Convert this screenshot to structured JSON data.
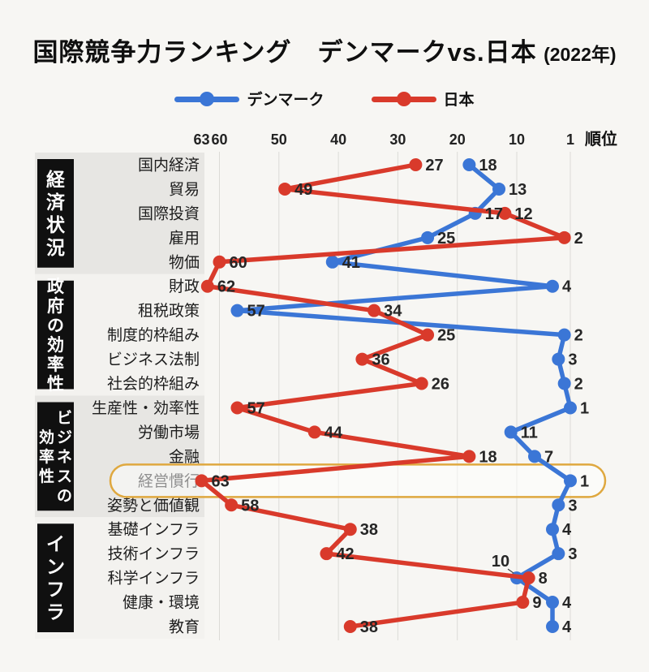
{
  "title": {
    "main": "国際競争力ランキング　デンマークvs.日本",
    "year": "(2022年)"
  },
  "legend": {
    "items": [
      {
        "label": "デンマーク",
        "color": "#3b76d6"
      },
      {
        "label": "日本",
        "color": "#d93a2b"
      }
    ]
  },
  "colors": {
    "background": "#f7f6f3",
    "band_gray": "#e7e6e3",
    "band_light": "#f3f2ef",
    "group_box": "#101010",
    "group_box_text": "#ffffff",
    "grid": "#dcdbd7",
    "text": "#1d1d1d",
    "value_label": "#262626",
    "leader_line": "#4a4a4a"
  },
  "chart_data": {
    "type": "line",
    "orientation": "horizontal",
    "note": "ranking chart, x axis reversed: rank 63 (worst) left, rank 1 (best) right",
    "axis": {
      "unit_label": "順位",
      "ticks": [
        63,
        60,
        50,
        40,
        30,
        20,
        10,
        1
      ],
      "gridline_ranks": [
        60,
        50,
        40,
        30,
        20,
        10,
        1
      ],
      "range": [
        1,
        63
      ]
    },
    "groups": [
      {
        "label": "経済状況",
        "label_columns": [
          "経済状況"
        ],
        "categories": [
          "国内経済",
          "貿易",
          "国際投資",
          "雇用",
          "物価"
        ]
      },
      {
        "label": "政府の効率性",
        "label_columns": [
          "政府の効率性"
        ],
        "categories": [
          "財政",
          "租税政策",
          "制度的枠組み",
          "ビジネス法制",
          "社会的枠組み"
        ]
      },
      {
        "label": "ビジネスの効率性",
        "label_columns": [
          "ビジネスの",
          "効率性"
        ],
        "categories": [
          "生産性・効率性",
          "労働市場",
          "金融",
          "経営慣行",
          "姿勢と価値観"
        ]
      },
      {
        "label": "インフラ",
        "label_columns": [
          "インフラ"
        ],
        "categories": [
          "基礎インフラ",
          "技術インフラ",
          "科学インフラ",
          "健康・環境",
          "教育"
        ]
      }
    ],
    "series": [
      {
        "name": "デンマーク",
        "color": "#3b76d6",
        "values": [
          18,
          13,
          17,
          25,
          41,
          4,
          57,
          2,
          3,
          2,
          1,
          11,
          7,
          1,
          3,
          4,
          3,
          10,
          4,
          4
        ]
      },
      {
        "name": "日本",
        "color": "#d93a2b",
        "values": [
          27,
          49,
          12,
          2,
          60,
          62,
          34,
          25,
          36,
          26,
          57,
          44,
          18,
          63,
          58,
          38,
          42,
          8,
          9,
          38
        ]
      }
    ],
    "highlight": {
      "category": "経営慣行",
      "color": "#dfa83f"
    },
    "annotations": [
      {
        "series": "デンマーク",
        "category": "科学インフラ",
        "value": 10,
        "offset": [
          -20,
          -14
        ],
        "leader_line": true
      }
    ]
  }
}
